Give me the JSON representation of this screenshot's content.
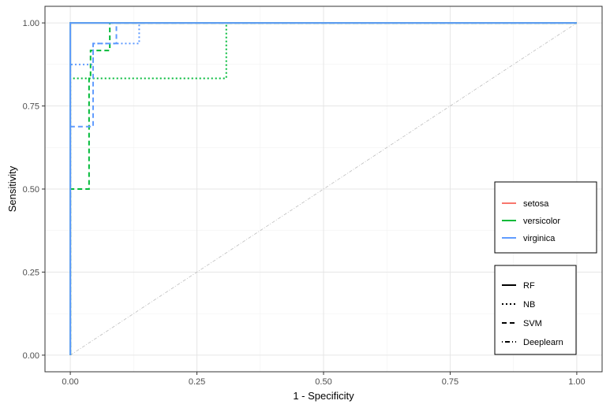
{
  "chart_data": {
    "type": "line",
    "title": "",
    "xlabel": "1 - Specificity",
    "ylabel": "Sensitivity",
    "xlim": [
      -0.05,
      1.05
    ],
    "ylim": [
      -0.05,
      1.05
    ],
    "x_ticks": [
      "0.00",
      "0.25",
      "0.50",
      "0.75",
      "1.00"
    ],
    "y_ticks": [
      "0.00",
      "0.25",
      "0.50",
      "0.75",
      "1.00"
    ],
    "x_tick_values": [
      0,
      0.25,
      0.5,
      0.75,
      1
    ],
    "y_tick_values": [
      0,
      0.25,
      0.5,
      0.75,
      1
    ],
    "grid": true,
    "reference_line": {
      "from": [
        0,
        0
      ],
      "to": [
        1,
        1
      ],
      "color": "#bdbdbd"
    },
    "legend_color": {
      "placement": "right",
      "entries": [
        {
          "label": "setosa",
          "color": "#F8766D"
        },
        {
          "label": "versicolor",
          "color": "#00BA38"
        },
        {
          "label": "virginica",
          "color": "#619CFF"
        }
      ]
    },
    "legend_linetype": {
      "placement": "right",
      "entries": [
        {
          "label": "RF",
          "dash": "solid"
        },
        {
          "label": "NB",
          "dash": "dotted"
        },
        {
          "label": "SVM",
          "dash": "dashed"
        },
        {
          "label": "Deeplearn",
          "dash": "dotdash"
        }
      ]
    },
    "series": [
      {
        "class": "setosa",
        "model": "RF",
        "color": "#F8766D",
        "dash": "solid",
        "x": [
          0,
          0,
          1
        ],
        "y": [
          0,
          1,
          1
        ]
      },
      {
        "class": "versicolor",
        "model": "RF",
        "color": "#00BA38",
        "dash": "solid",
        "x": [
          0,
          0,
          1
        ],
        "y": [
          0,
          1,
          1
        ]
      },
      {
        "class": "virginica",
        "model": "RF",
        "color": "#619CFF",
        "dash": "solid",
        "x": [
          0,
          0,
          1
        ],
        "y": [
          0,
          1,
          1
        ]
      },
      {
        "class": "versicolor",
        "model": "SVM",
        "color": "#00BA38",
        "dash": "dashed",
        "x": [
          0,
          0,
          0.037,
          0.037,
          0.04,
          0.04,
          0.078,
          0.078,
          0.078,
          1
        ],
        "y": [
          0,
          0.5,
          0.5,
          0.833,
          0.833,
          0.917,
          0.917,
          1,
          1,
          1
        ]
      },
      {
        "class": "versicolor",
        "model": "NB",
        "color": "#00BA38",
        "dash": "dotted",
        "x": [
          0,
          0,
          0.308,
          0.308,
          1
        ],
        "y": [
          0,
          0.833,
          0.833,
          1,
          1
        ]
      },
      {
        "class": "virginica",
        "model": "SVM",
        "color": "#619CFF",
        "dash": "dashed",
        "x": [
          0,
          0,
          0.045,
          0.045,
          0.091,
          0.091,
          0.091,
          1
        ],
        "y": [
          0,
          0.688,
          0.688,
          0.938,
          0.938,
          1,
          1,
          1
        ]
      },
      {
        "class": "virginica",
        "model": "NB",
        "color": "#619CFF",
        "dash": "dotted",
        "x": [
          0,
          0,
          0.045,
          0.045,
          0.136,
          0.136,
          1
        ],
        "y": [
          0,
          0.875,
          0.875,
          0.938,
          0.938,
          1,
          1
        ]
      }
    ]
  }
}
